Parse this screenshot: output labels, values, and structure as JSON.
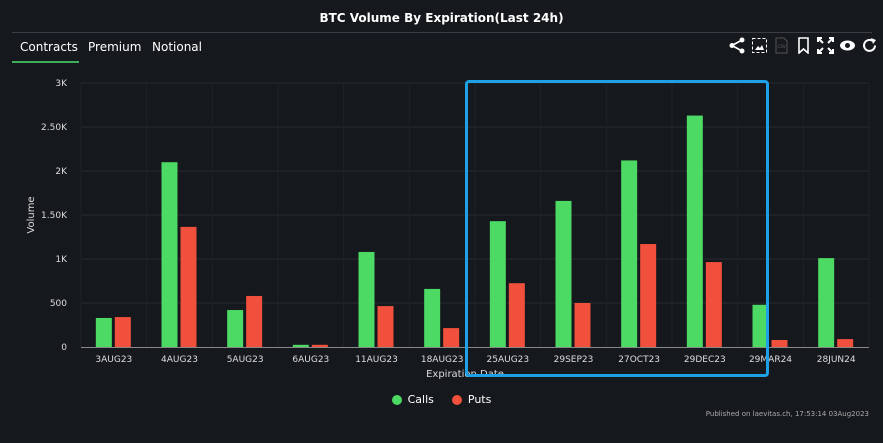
{
  "header": {
    "title": "BTC Volume By Expiration(Last 24h)"
  },
  "tabs": [
    {
      "label": "Contracts",
      "active": true
    },
    {
      "label": "Premium"
    },
    {
      "label": "Notional"
    }
  ],
  "toolbar": [
    "share-icon",
    "image-icon",
    "csv-icon",
    "bookmark-icon",
    "fullscreen-icon",
    "eye-icon",
    "refresh-icon"
  ],
  "footer": "Published on laevitas.ch, 17:53:14 03Aug2023",
  "colors": {
    "calls": "#4cd964",
    "puts": "#f0503c",
    "highlight": "#1ea0e6"
  },
  "chart_data": {
    "type": "bar",
    "title": "BTC Volume By Expiration(Last 24h)",
    "xlabel": "Expiration Date",
    "ylabel": "Volume",
    "ylim": [
      0,
      3000
    ],
    "yticks": [
      {
        "v": 0,
        "label": "0"
      },
      {
        "v": 500,
        "label": "500"
      },
      {
        "v": 1000,
        "label": "1K"
      },
      {
        "v": 1500,
        "label": "1.50K"
      },
      {
        "v": 2000,
        "label": "2K"
      },
      {
        "v": 2500,
        "label": "2.50K"
      },
      {
        "v": 3000,
        "label": "3K"
      }
    ],
    "categories": [
      "3AUG23",
      "4AUG23",
      "5AUG23",
      "6AUG23",
      "11AUG23",
      "18AUG23",
      "25AUG23",
      "29SEP23",
      "27OCT23",
      "29DEC23",
      "29MAR24",
      "28JUN24"
    ],
    "series": [
      {
        "name": "Calls",
        "values": [
          330,
          2100,
          420,
          25,
          1080,
          660,
          1430,
          1660,
          2120,
          2630,
          480,
          1010
        ]
      },
      {
        "name": "Puts",
        "values": [
          340,
          1365,
          580,
          25,
          465,
          215,
          725,
          500,
          1170,
          965,
          80,
          90
        ]
      }
    ],
    "legend": "bottom",
    "grid": true
  }
}
